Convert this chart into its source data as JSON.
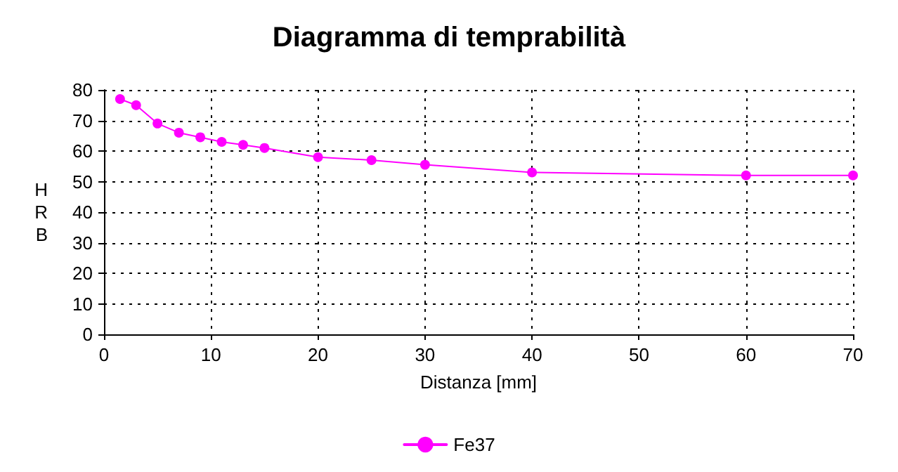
{
  "chart_data": {
    "type": "line",
    "title": "Diagramma di temprabilità",
    "xlabel": "Distanza [mm]",
    "ylabel": "HRB",
    "x": [
      1.5,
      3,
      5,
      7,
      9,
      11,
      13,
      15,
      20,
      25,
      30,
      40,
      60,
      70
    ],
    "series": [
      {
        "name": "Fe37",
        "color": "#ff00ff",
        "values": [
          77,
          75,
          69,
          66,
          64.5,
          63,
          62,
          61,
          58,
          57,
          55.5,
          53,
          52,
          52
        ]
      }
    ],
    "xlim": [
      0,
      70
    ],
    "xticks": [
      0,
      10,
      20,
      30,
      40,
      50,
      60,
      70
    ],
    "ylim": [
      0,
      80
    ],
    "yticks": [
      0,
      10,
      20,
      30,
      40,
      50,
      60,
      70,
      80
    ],
    "grid": true,
    "legend": "bottom",
    "marker": "circle",
    "line_style": "solid"
  }
}
